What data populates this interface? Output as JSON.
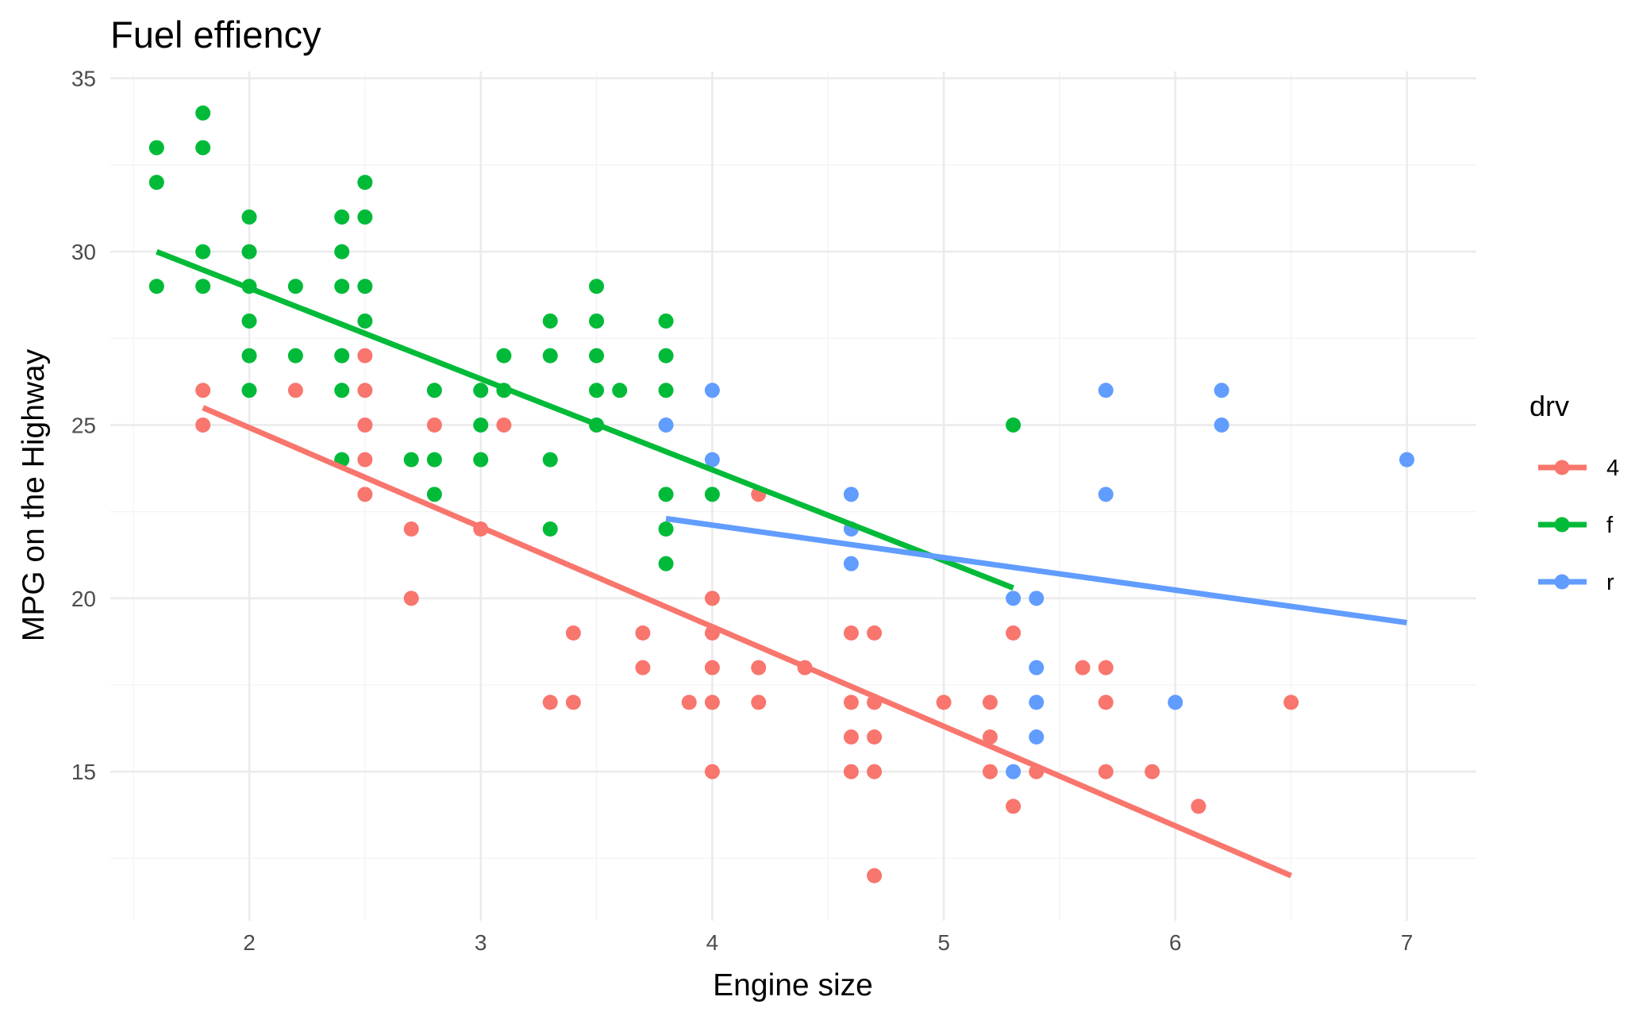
{
  "chart_data": {
    "type": "scatter",
    "title": "Fuel effiency",
    "xlabel": "Engine size",
    "ylabel": "MPG on the Highway",
    "xlim": [
      1.4,
      7.3
    ],
    "ylim": [
      10.7,
      35.2
    ],
    "xticks": [
      2,
      3,
      4,
      5,
      6,
      7
    ],
    "yticks": [
      15,
      20,
      25,
      30,
      35
    ],
    "grid": true,
    "legend": {
      "title": "drv",
      "placement": "right"
    },
    "series": [
      {
        "name": "4",
        "color": "#F8766D",
        "points": [
          [
            1.8,
            26
          ],
          [
            1.8,
            25
          ],
          [
            2.2,
            26
          ],
          [
            2.5,
            27
          ],
          [
            2.5,
            26
          ],
          [
            2.5,
            25
          ],
          [
            2.5,
            24
          ],
          [
            2.5,
            23
          ],
          [
            2.7,
            22
          ],
          [
            2.7,
            20
          ],
          [
            2.8,
            25
          ],
          [
            3.0,
            22
          ],
          [
            3.1,
            25
          ],
          [
            3.3,
            17
          ],
          [
            3.4,
            19
          ],
          [
            3.4,
            17
          ],
          [
            3.7,
            19
          ],
          [
            3.7,
            18
          ],
          [
            3.9,
            17
          ],
          [
            4.0,
            20
          ],
          [
            4.0,
            19
          ],
          [
            4.0,
            18
          ],
          [
            4.0,
            17
          ],
          [
            4.0,
            15
          ],
          [
            4.2,
            23
          ],
          [
            4.2,
            18
          ],
          [
            4.2,
            17
          ],
          [
            4.4,
            18
          ],
          [
            4.6,
            19
          ],
          [
            4.6,
            17
          ],
          [
            4.6,
            16
          ],
          [
            4.6,
            15
          ],
          [
            4.7,
            19
          ],
          [
            4.7,
            17
          ],
          [
            4.7,
            16
          ],
          [
            4.7,
            15
          ],
          [
            4.7,
            12
          ],
          [
            5.0,
            17
          ],
          [
            5.2,
            17
          ],
          [
            5.2,
            16
          ],
          [
            5.2,
            15
          ],
          [
            5.3,
            19
          ],
          [
            5.3,
            14
          ],
          [
            5.4,
            15
          ],
          [
            5.6,
            18
          ],
          [
            5.7,
            18
          ],
          [
            5.7,
            17
          ],
          [
            5.7,
            15
          ],
          [
            5.9,
            15
          ],
          [
            6.1,
            14
          ],
          [
            6.5,
            17
          ]
        ],
        "fit": [
          [
            1.8,
            25.5
          ],
          [
            6.5,
            12.0
          ]
        ]
      },
      {
        "name": "f",
        "color": "#00BA38",
        "points": [
          [
            1.6,
            33
          ],
          [
            1.6,
            32
          ],
          [
            1.6,
            29
          ],
          [
            1.8,
            34
          ],
          [
            1.8,
            33
          ],
          [
            1.8,
            30
          ],
          [
            1.8,
            29
          ],
          [
            2.0,
            31
          ],
          [
            2.0,
            30
          ],
          [
            2.0,
            29
          ],
          [
            2.0,
            28
          ],
          [
            2.0,
            27
          ],
          [
            2.0,
            26
          ],
          [
            2.2,
            29
          ],
          [
            2.2,
            27
          ],
          [
            2.4,
            31
          ],
          [
            2.4,
            30
          ],
          [
            2.4,
            29
          ],
          [
            2.4,
            27
          ],
          [
            2.4,
            26
          ],
          [
            2.4,
            24
          ],
          [
            2.5,
            32
          ],
          [
            2.5,
            31
          ],
          [
            2.5,
            29
          ],
          [
            2.5,
            28
          ],
          [
            2.7,
            24
          ],
          [
            2.8,
            26
          ],
          [
            2.8,
            24
          ],
          [
            2.8,
            23
          ],
          [
            3.0,
            26
          ],
          [
            3.0,
            25
          ],
          [
            3.0,
            24
          ],
          [
            3.1,
            27
          ],
          [
            3.1,
            26
          ],
          [
            3.3,
            28
          ],
          [
            3.3,
            27
          ],
          [
            3.3,
            24
          ],
          [
            3.3,
            22
          ],
          [
            3.5,
            29
          ],
          [
            3.5,
            28
          ],
          [
            3.5,
            27
          ],
          [
            3.5,
            26
          ],
          [
            3.5,
            25
          ],
          [
            3.6,
            26
          ],
          [
            3.8,
            28
          ],
          [
            3.8,
            27
          ],
          [
            3.8,
            26
          ],
          [
            3.8,
            23
          ],
          [
            3.8,
            22
          ],
          [
            3.8,
            21
          ],
          [
            4.0,
            23
          ],
          [
            5.3,
            25
          ]
        ],
        "fit": [
          [
            1.6,
            30.0
          ],
          [
            5.3,
            20.3
          ]
        ]
      },
      {
        "name": "r",
        "color": "#619CFF",
        "points": [
          [
            3.8,
            25
          ],
          [
            4.0,
            26
          ],
          [
            4.0,
            24
          ],
          [
            4.6,
            23
          ],
          [
            4.6,
            22
          ],
          [
            4.6,
            21
          ],
          [
            5.3,
            20
          ],
          [
            5.3,
            15
          ],
          [
            5.4,
            20
          ],
          [
            5.4,
            18
          ],
          [
            5.4,
            17
          ],
          [
            5.4,
            16
          ],
          [
            5.7,
            26
          ],
          [
            5.7,
            23
          ],
          [
            6.0,
            17
          ],
          [
            6.2,
            26
          ],
          [
            6.2,
            25
          ],
          [
            7.0,
            24
          ]
        ],
        "fit": [
          [
            3.8,
            22.3
          ],
          [
            7.0,
            19.3
          ]
        ]
      }
    ]
  }
}
